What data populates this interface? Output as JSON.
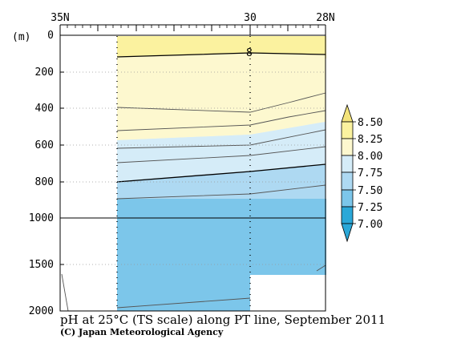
{
  "chart_data": {
    "type": "heatmap",
    "title": "pH at 25°C (TS scale) along PT line, September 2011",
    "credit": "(C) Japan Meteorological Agency",
    "y_unit": "(m)",
    "x_ticks": [
      "35N",
      "30",
      "28N"
    ],
    "y_ticks": [
      "0",
      "200",
      "400",
      "600",
      "800",
      "1000",
      "1500",
      "2000"
    ],
    "y_range": [
      0,
      2000
    ],
    "y_scale": "piecewise-linear, break at 1000 m",
    "contour_label": "8",
    "legend": {
      "placement": "right",
      "levels": [
        "8.50",
        "8.25",
        "8.00",
        "7.75",
        "7.50",
        "7.25",
        "7.00"
      ],
      "colors": [
        "#f3e37a",
        "#fbf29f",
        "#fdf8cf",
        "#d5ecf8",
        "#aed9f2",
        "#7cc6ea",
        "#2ba8d8"
      ]
    },
    "bands": [
      {
        "range": "8.25-8.50",
        "color": "#fbf29f"
      },
      {
        "range": "8.00-8.25",
        "color": "#fdf8cf"
      },
      {
        "range": "7.75-8.00",
        "color": "#d5ecf8"
      },
      {
        "range": "7.50-7.75",
        "color": "#aed9f2"
      },
      {
        "range": "7.25-7.50",
        "color": "#7cc6ea"
      }
    ]
  }
}
